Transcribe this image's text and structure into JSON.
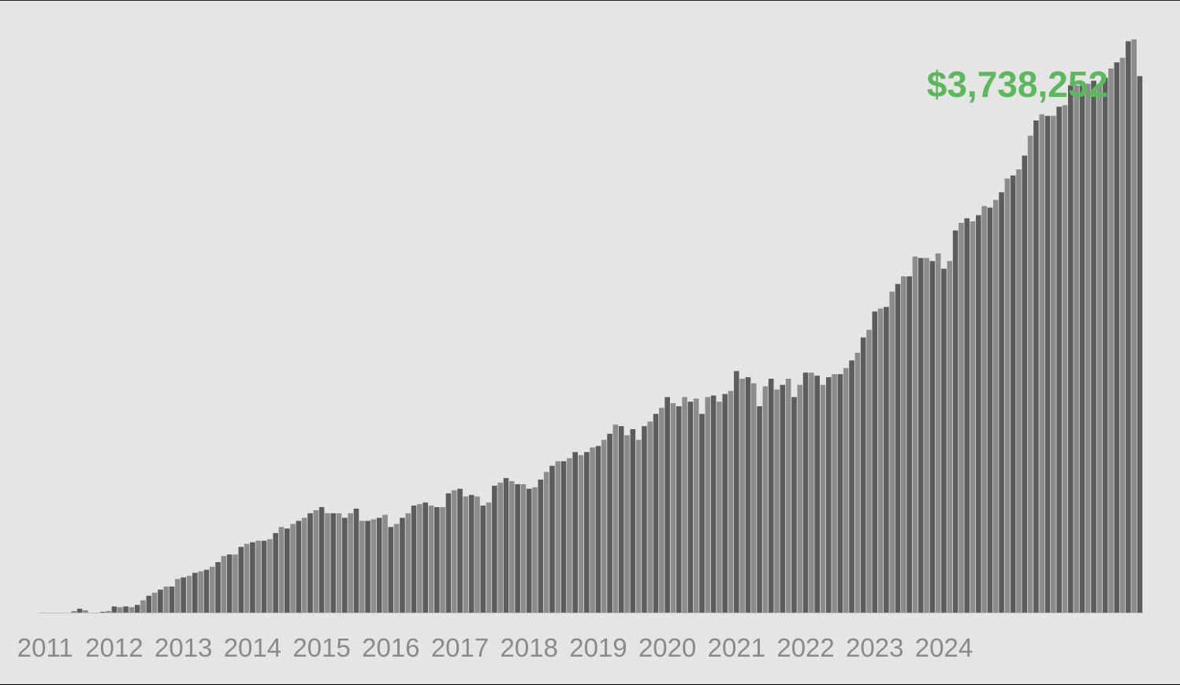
{
  "chart_data": {
    "type": "bar",
    "title": "",
    "xlabel": "",
    "ylabel": "",
    "ylim": [
      0,
      3900000
    ],
    "grid": false,
    "annotation": "$3,738,252",
    "annotation_color": "#5cb85c",
    "bar_colors": [
      "#5c5c5c",
      "#8c8c8c"
    ],
    "x_tick_labels": [
      "2011",
      "2012",
      "2013",
      "2014",
      "2015",
      "2016",
      "2017",
      "2018",
      "2019",
      "2020",
      "2021",
      "2022",
      "2023",
      "2024"
    ],
    "start_month": "2011-01",
    "series": [
      {
        "values": [
          0,
          0,
          0,
          0,
          0,
          10000,
          25000,
          15000,
          0,
          0,
          5000,
          10000,
          40000,
          35000,
          40000,
          35000,
          50000,
          80000,
          110000,
          130000,
          150000,
          170000,
          170000,
          220000,
          230000,
          240000,
          260000,
          270000,
          280000,
          300000,
          330000,
          370000,
          380000,
          380000,
          430000,
          450000,
          460000,
          470000,
          470000,
          480000,
          520000,
          560000,
          550000,
          580000,
          600000,
          620000,
          650000,
          670000,
          690000,
          650000,
          650000,
          650000,
          620000,
          650000,
          680000,
          600000,
          600000,
          610000,
          620000,
          640000,
          560000,
          580000,
          620000,
          650000,
          700000,
          710000,
          720000,
          700000,
          690000,
          690000,
          780000,
          800000,
          810000,
          760000,
          770000,
          760000,
          700000,
          720000,
          830000,
          850000,
          880000,
          860000,
          840000,
          840000,
          810000,
          820000,
          870000,
          920000,
          960000,
          990000,
          990000,
          1010000,
          1050000,
          1030000,
          1050000,
          1080000,
          1090000,
          1130000,
          1170000,
          1230000,
          1220000,
          1160000,
          1200000,
          1130000,
          1220000,
          1250000,
          1300000,
          1340000,
          1410000,
          1370000,
          1350000,
          1410000,
          1380000,
          1400000,
          1300000,
          1410000,
          1420000,
          1380000,
          1430000,
          1450000,
          1580000,
          1530000,
          1540000,
          1500000,
          1350000,
          1480000,
          1530000,
          1460000,
          1490000,
          1530000,
          1410000,
          1490000,
          1570000,
          1570000,
          1550000,
          1490000,
          1540000,
          1560000,
          1560000,
          1600000,
          1650000,
          1700000,
          1800000,
          1850000,
          1970000,
          1990000,
          2000000,
          2100000,
          2150000,
          2200000,
          2200000,
          2330000,
          2320000,
          2320000,
          2300000,
          2350000,
          2250000,
          2300000,
          2500000,
          2550000,
          2580000,
          2560000,
          2600000,
          2660000,
          2650000,
          2700000,
          2750000,
          2840000,
          2860000,
          2900000,
          2990000,
          3120000,
          3220000,
          3260000,
          3250000,
          3250000,
          3310000,
          3320000,
          3450000,
          3450000,
          3450000,
          3460000,
          3480000,
          3450000,
          3500000,
          3560000,
          3600000,
          3630000,
          3738252,
          3750000,
          3510000
        ]
      }
    ]
  }
}
